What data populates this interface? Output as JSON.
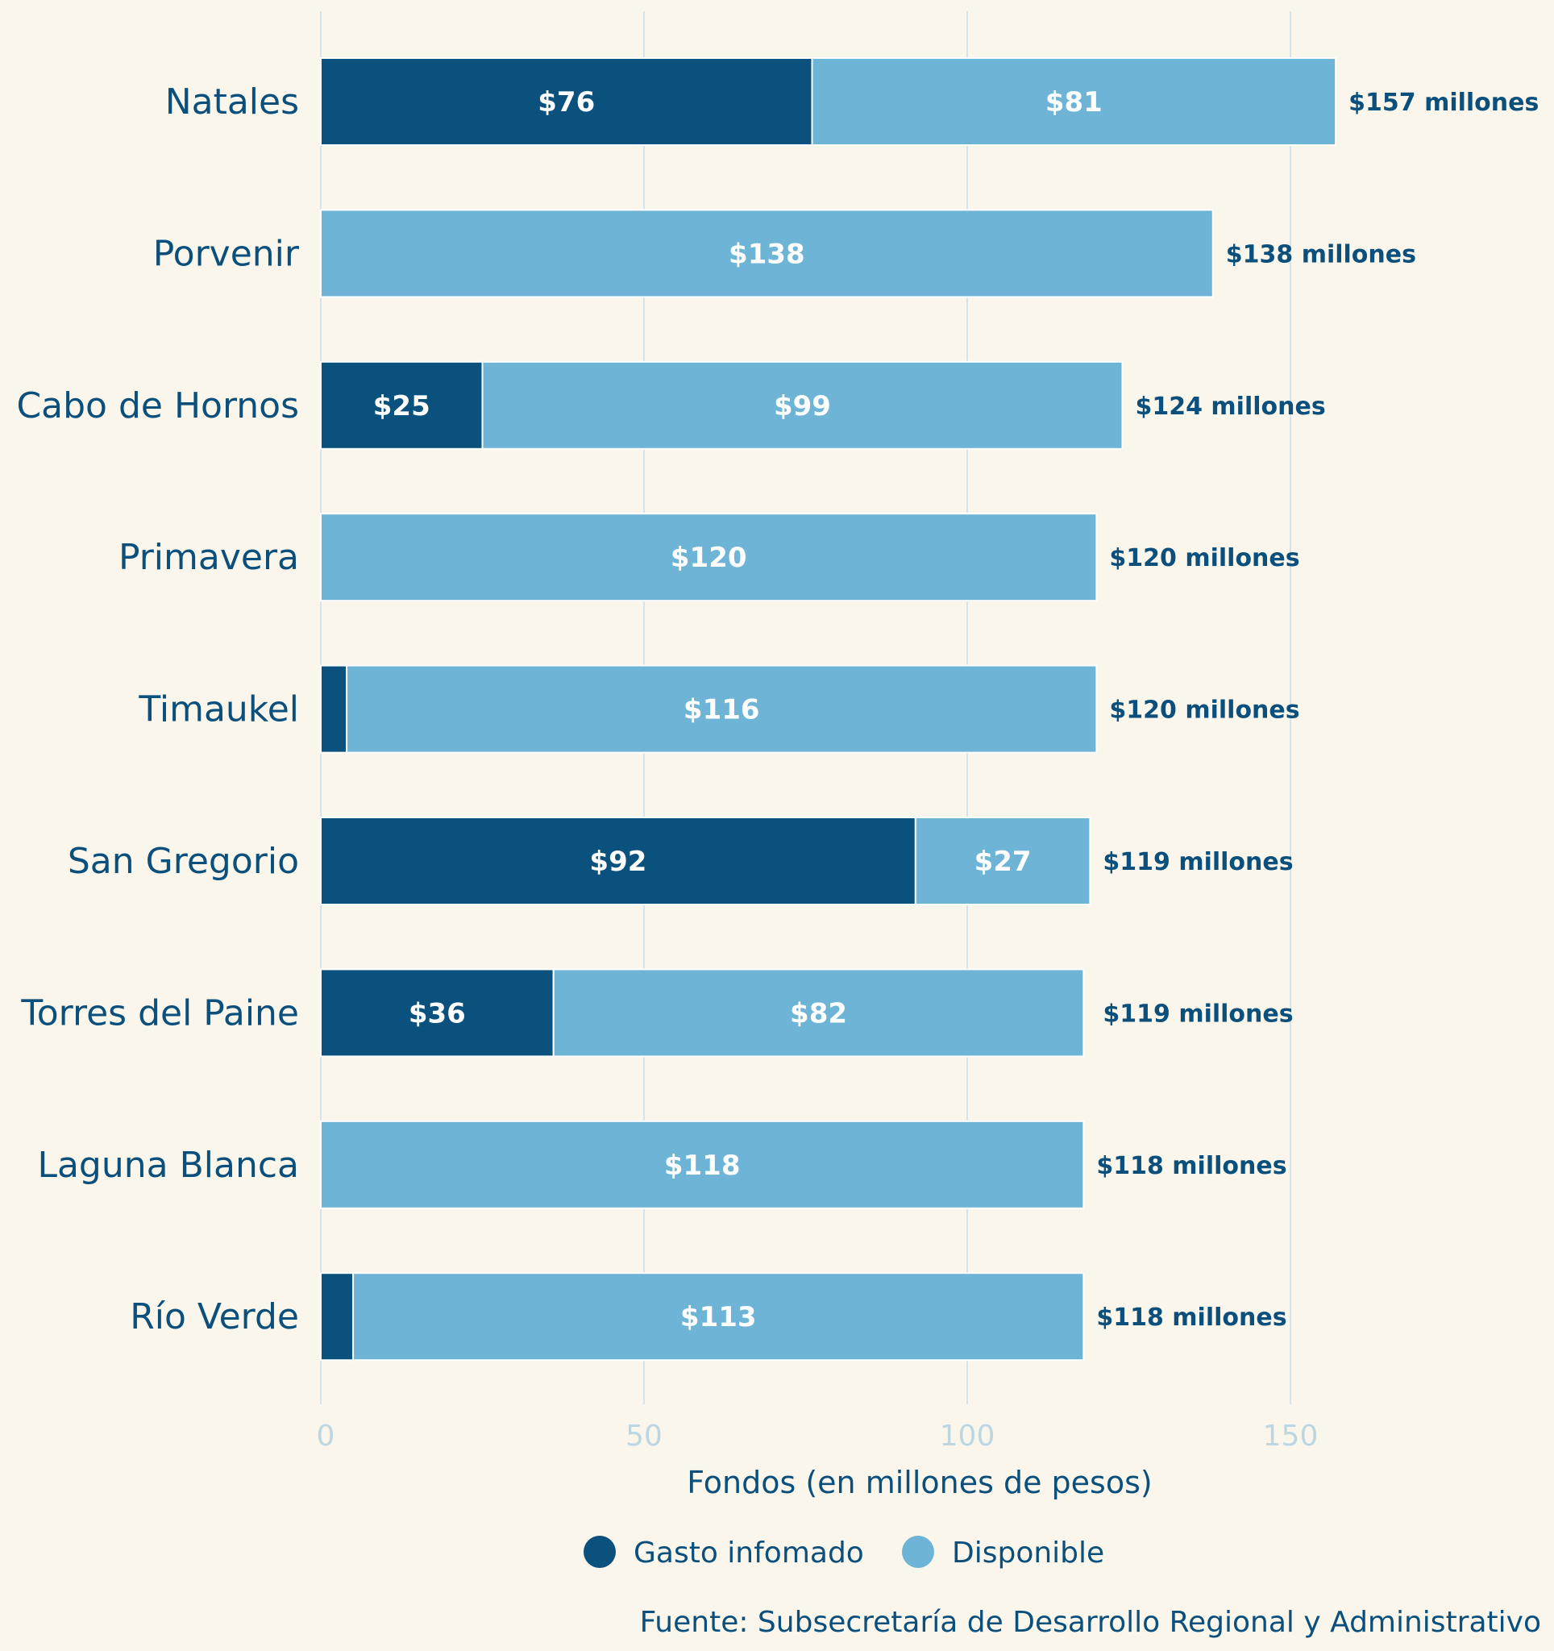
{
  "chart_data": {
    "type": "bar",
    "orientation": "horizontal",
    "stacked": true,
    "categories": [
      "Natales",
      "Porvenir",
      "Cabo de Hornos",
      "Primavera",
      "Timaukel",
      "San Gregorio",
      "Torres del Paine",
      "Laguna Blanca",
      "Río Verde"
    ],
    "series": [
      {
        "name": "Gasto infomado",
        "color": "#0b517e",
        "values": [
          76,
          0,
          25,
          0,
          4,
          92,
          36,
          0,
          5
        ],
        "labels": [
          "$76",
          "",
          "$25",
          "",
          "",
          "$92",
          "$36",
          "",
          ""
        ]
      },
      {
        "name": "Disponible",
        "color": "#6db4d6",
        "values": [
          81,
          138,
          99,
          120,
          116,
          27,
          82,
          118,
          113
        ],
        "labels": [
          "$81",
          "$138",
          "$99",
          "$120",
          "$116",
          "$27",
          "$82",
          "$118",
          "$113"
        ]
      }
    ],
    "totals": [
      157,
      138,
      124,
      120,
      120,
      119,
      119,
      118,
      118
    ],
    "total_labels": [
      "$157 millones",
      "$138 millones",
      "$124 millones",
      "$120 millones",
      "$120 millones",
      "$119 millones",
      "$119 millones",
      "$118 millones",
      "$118 millones"
    ],
    "xticks": [
      0,
      50,
      100,
      150
    ],
    "xtick_labels": [
      "0",
      "50",
      "100",
      "150"
    ],
    "xlim": [
      0,
      157
    ],
    "xlabel": "Fondos (en millones de pesos)",
    "ylabel": "",
    "grid": true,
    "legend_position": "bottom",
    "source": "Fuente: Subsecretaría de Desarrollo Regional y Administrativo"
  }
}
